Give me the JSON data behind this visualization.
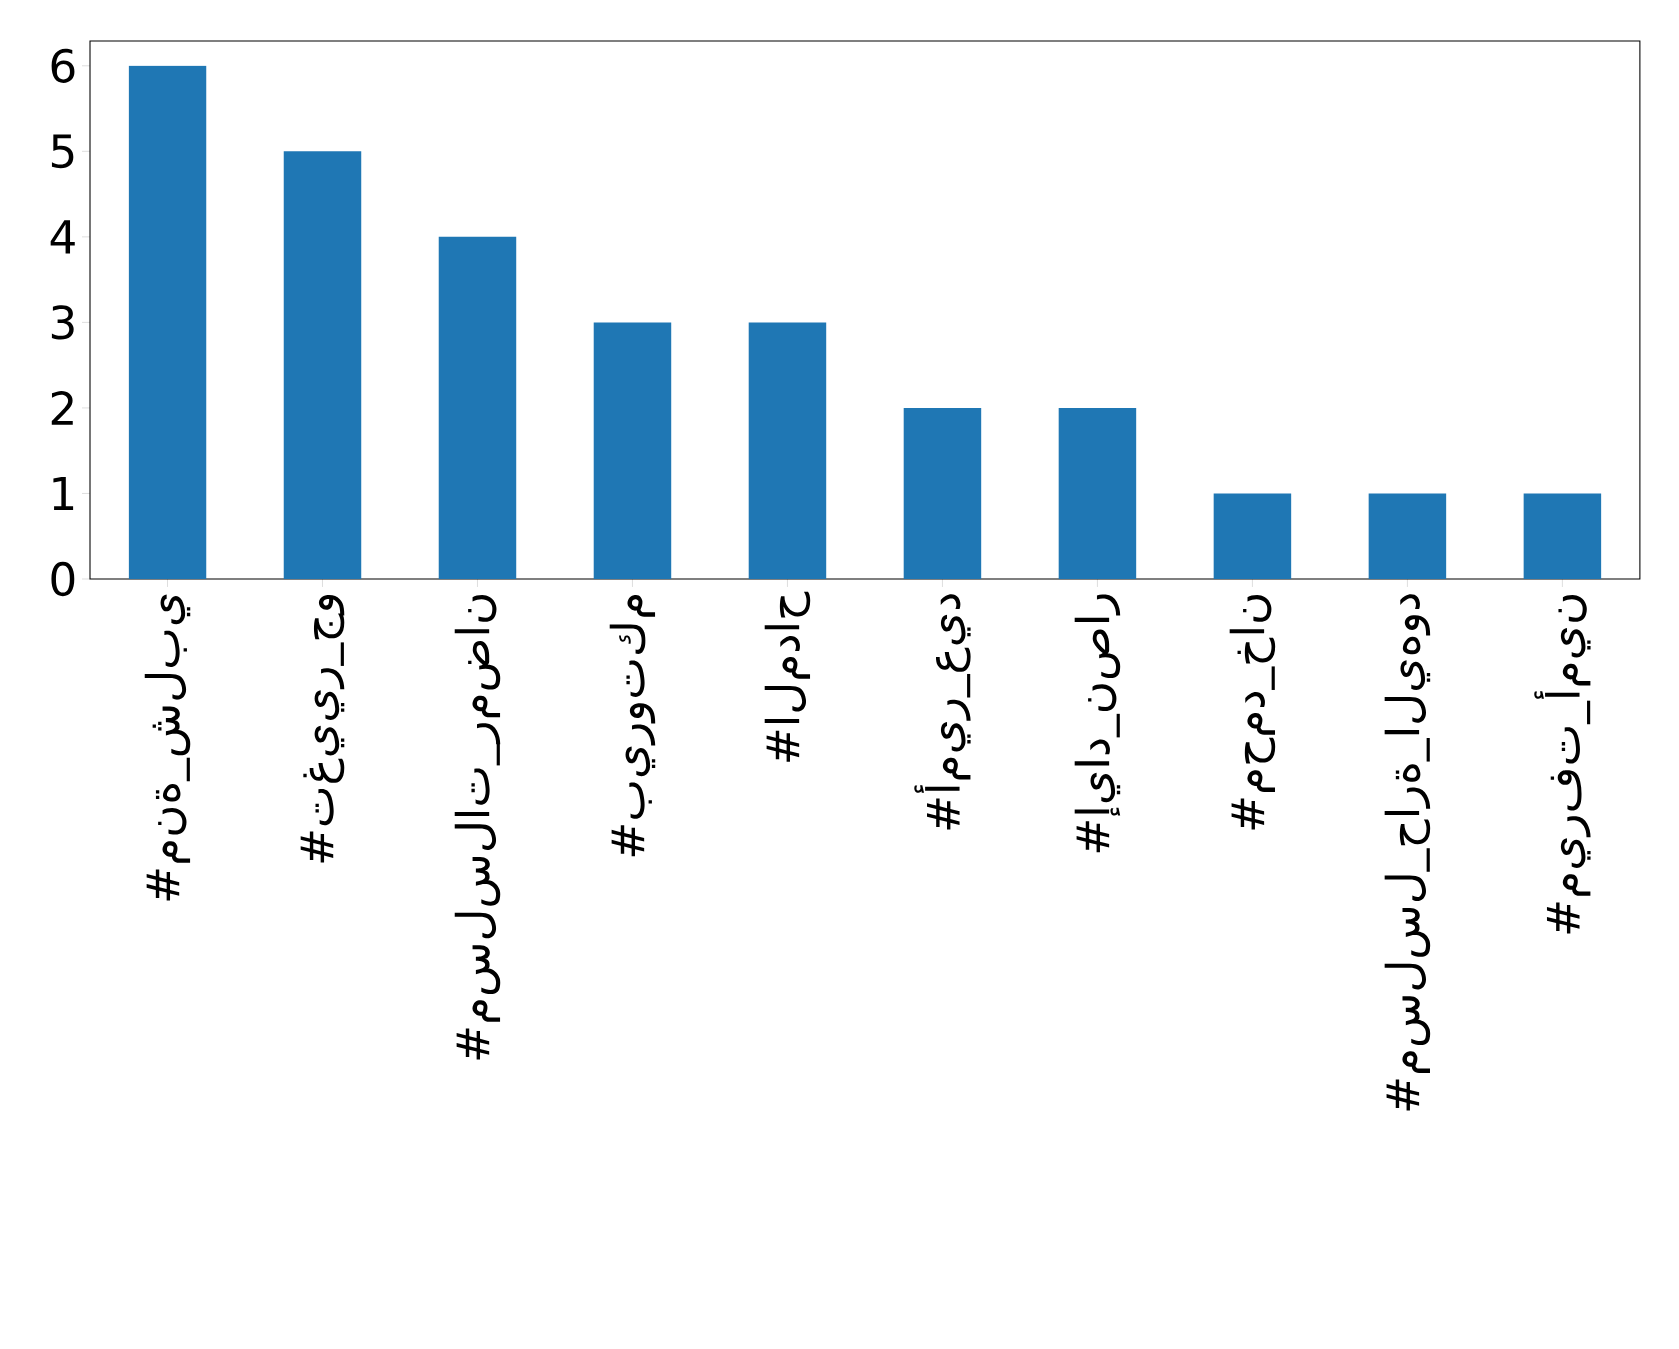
{
  "chart_data": {
    "type": "bar",
    "categories": [
      "#منة_شلبي",
      "#تغيير_جو",
      "#مسلسلات_رمضان",
      "#بيروتكم",
      "#المداح",
      "#أمير_عيد",
      "#إياد_نصار",
      "#محمد_خان",
      "#مسلسل_حارة_اليهود",
      "#ميرفت_أمين"
    ],
    "values": [
      6,
      5,
      4,
      3,
      3,
      2,
      2,
      1,
      1,
      1
    ],
    "color": "#1f77b4",
    "ylim": [
      0,
      6.29
    ],
    "yticks": [
      0,
      1,
      2,
      3,
      4,
      5,
      6
    ],
    "grid": false
  }
}
